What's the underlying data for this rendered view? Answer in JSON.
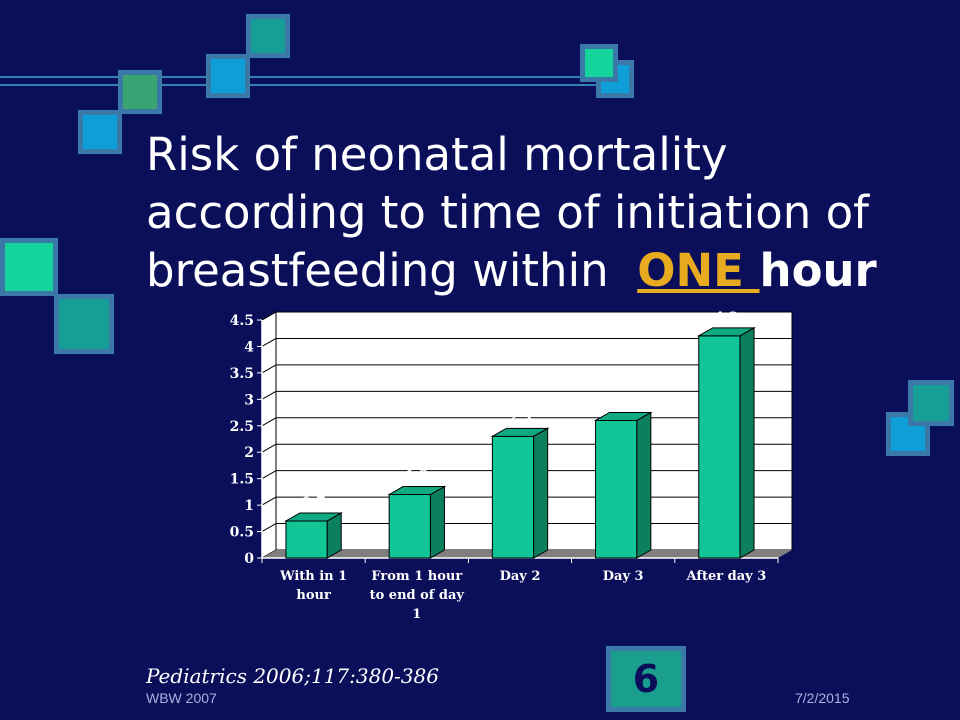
{
  "title": {
    "line1": "Risk of neonatal mortality",
    "line2": "according to time of initiation of",
    "line3_prefix": "breastfeeding within  ",
    "line3_emphasis": "ONE ",
    "line3_suffix": "hour"
  },
  "chart_data": {
    "type": "bar",
    "categories": [
      [
        "With in 1",
        "hour"
      ],
      [
        "From 1 hour",
        "to end of day",
        "1"
      ],
      [
        "Day 2"
      ],
      [
        "Day 3"
      ],
      [
        "After day 3"
      ]
    ],
    "values": [
      0.7,
      1.2,
      2.3,
      2.6,
      4.2
    ],
    "data_labels": [
      "0.7",
      "1.2",
      "2.3",
      "2.6",
      "4.2"
    ],
    "ylim": [
      0,
      4.5
    ],
    "yticks": [
      "0",
      "0.5",
      "1",
      "1.5",
      "2",
      "2.5",
      "3",
      "3.5",
      "4",
      "4.5"
    ],
    "grid": true,
    "colors": {
      "bar": "#11c596",
      "bar_side": "#0b7f5e",
      "bar_top": "#0fa982",
      "floor": "#7f7f7f"
    }
  },
  "citation": "Pediatrics 2006;117:380-386",
  "footer": {
    "left": "WBW 2007",
    "right": "7/2/2015"
  },
  "slide_number": "6",
  "decor_colors": {
    "frame": "#3a78a8",
    "blue": "#0e9fd9",
    "green": "#3aa374",
    "mint": "#14d39b",
    "teal": "#169e97"
  }
}
